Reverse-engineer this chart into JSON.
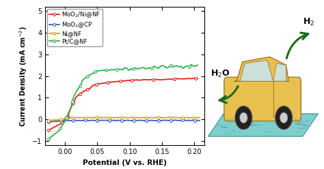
{
  "xlabel": "Potential (V vs. RHE)",
  "ylabel": "Current Density (mA cm$^{-2}$)",
  "xlim": [
    -0.03,
    0.215
  ],
  "ylim": [
    -1.2,
    5.2
  ],
  "yticks": [
    -1,
    0,
    1,
    2,
    3,
    4,
    5
  ],
  "xticks": [
    0.0,
    0.05,
    0.1,
    0.15,
    0.2
  ],
  "legend_labels": [
    "MoO$_2$/Ni@NF",
    "MoO$_2$@CP",
    "Ni@NF",
    "Pt/C@NF"
  ],
  "line_colors": [
    "#e82020",
    "#3060c8",
    "#d4a010",
    "#30b050"
  ],
  "h2o_text": "H$_2$O",
  "h2_text": "H$_2$",
  "arrow_color": "#1a6b1a",
  "car_body_color": "#e8c050",
  "car_outline_color": "#a07820",
  "surface_color": "#7ecece",
  "surface_edge_color": "#3a9090"
}
